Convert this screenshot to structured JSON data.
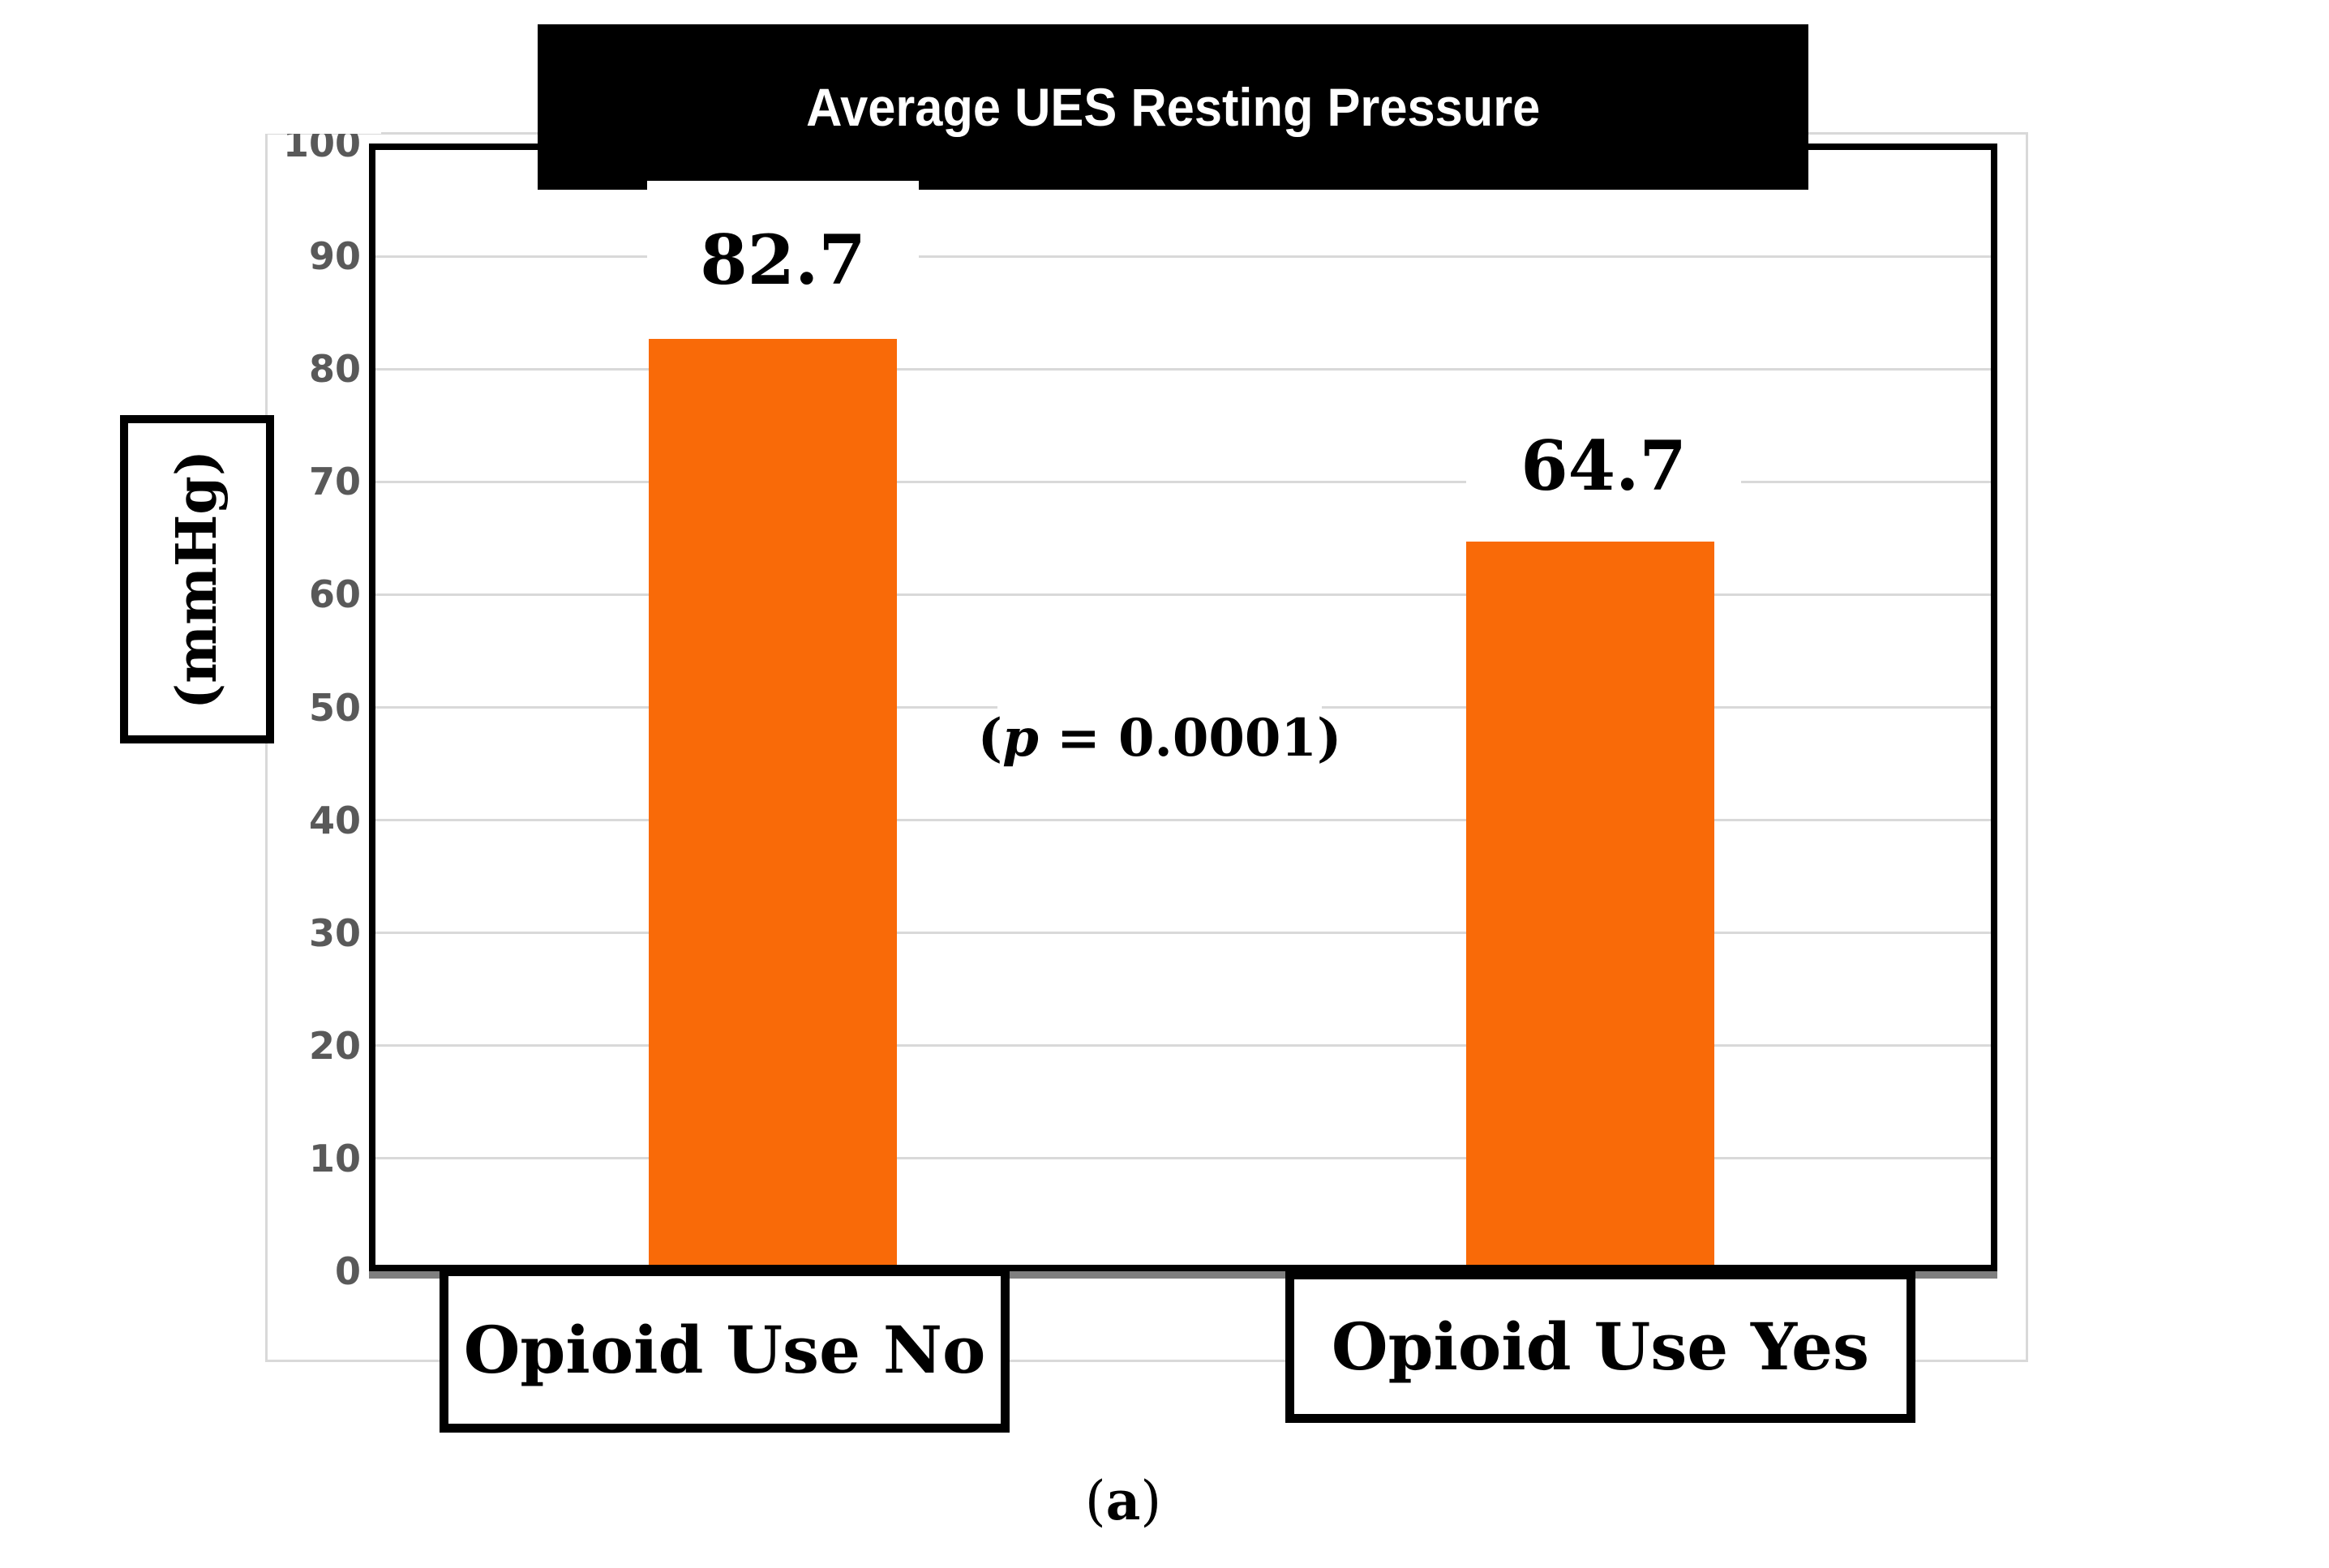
{
  "figure": {
    "caption": "(a)",
    "caption_parts": {
      "open": "(",
      "letter": "a",
      "close": ")"
    }
  },
  "chart_data": {
    "type": "bar",
    "title": "Average UES Resting Pressure",
    "categories": [
      "Opioid Use No",
      "Opioid Use Yes"
    ],
    "values": [
      82.7,
      64.7
    ],
    "value_labels": [
      "82.7",
      "64.7"
    ],
    "ylabel": "(mmHg)",
    "xlabel": "",
    "ylim": [
      0,
      100
    ],
    "yticks": [
      0,
      10,
      20,
      30,
      40,
      50,
      60,
      70,
      80,
      90,
      100
    ],
    "ytick_interval": 10,
    "grid": true,
    "legend": false,
    "annotation": {
      "text": "(p = 0.0001)",
      "open": "(",
      "symbol": "p",
      "rest": " = 0.0001)"
    },
    "colors": {
      "bar": "#f96a08",
      "gridline": "#d9d9d9",
      "tick_label": "#595959",
      "title_bg": "#000000",
      "title_text": "#ffffff",
      "axis_line": "#7f7f7f"
    }
  }
}
